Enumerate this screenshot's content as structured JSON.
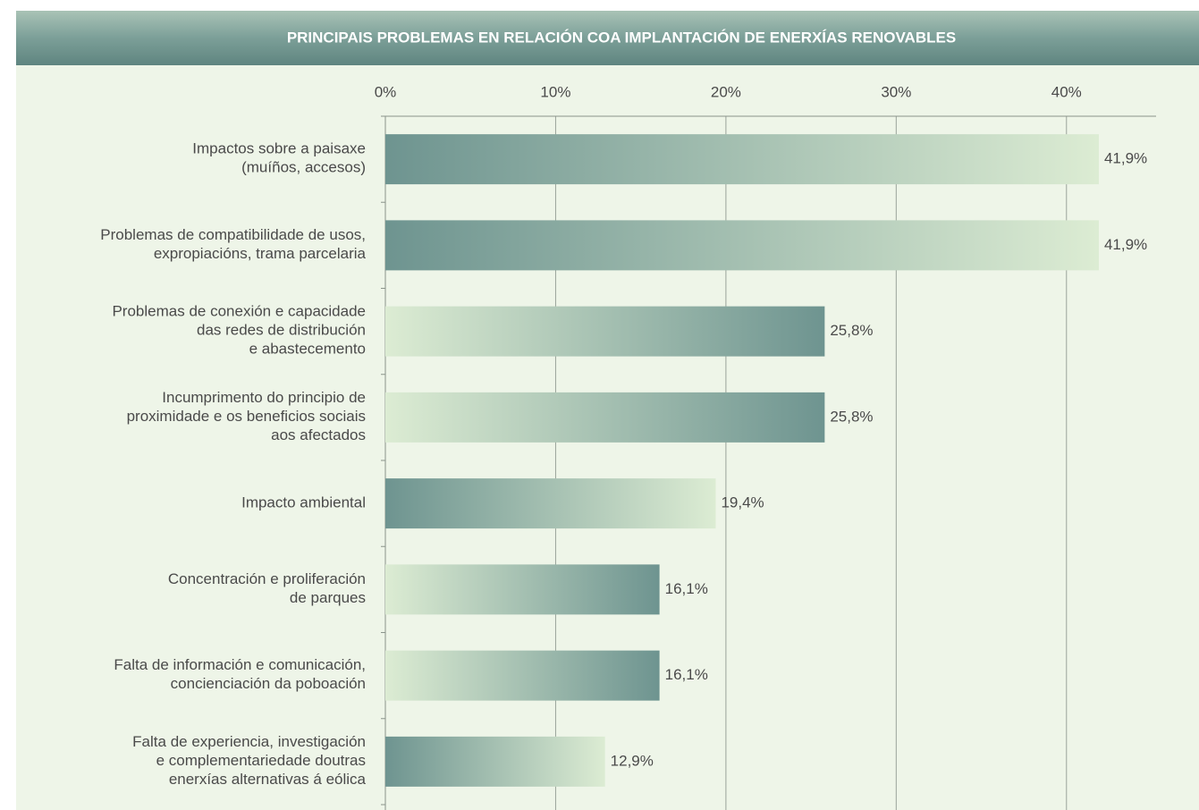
{
  "chart_data": {
    "type": "barh",
    "title": "PRINCIPAIS PROBLEMAS EN RELACIÓN COA IMPLANTACIÓN DE ENERXÍAS RENOVABLES",
    "categories": [
      "Impactos sobre a paisaxe\n(muíños, accesos)",
      "Problemas de compatibilidade de usos,\nexpropiacións, trama parcelaria",
      "Problemas de conexión e capacidade\ndas redes de distribución\ne abastecemento",
      "Incumprimento do principio de\nproximidade e os beneficios sociais\naos afectados",
      "Impacto ambiental",
      "Concentración e proliferación\nde parques",
      "Falta de información e comunicación,\nconcienciación da poboación",
      "Falta de experiencia, investigación\ne complementariedade doutras\nenerxías alternativas á eólica"
    ],
    "values": [
      41.9,
      41.9,
      25.8,
      25.8,
      19.4,
      16.1,
      16.1,
      12.9
    ],
    "value_labels": [
      "41,9%",
      "41,9%",
      "25,8%",
      "25,8%",
      "19,4%",
      "16,1%",
      "16,1%",
      "12,9%"
    ],
    "bar_gradients": [
      [
        "#6e9490",
        "#dcecd3"
      ],
      [
        "#6e9490",
        "#dcecd3"
      ],
      [
        "#dcecd3",
        "#6e9490"
      ],
      [
        "#dcecd3",
        "#6e9490"
      ],
      [
        "#6e9490",
        "#dcecd3"
      ],
      [
        "#dcecd3",
        "#6e9490"
      ],
      [
        "#dcecd3",
        "#6e9490"
      ],
      [
        "#6e9490",
        "#dcecd3"
      ]
    ],
    "xlim": [
      0,
      45
    ],
    "xticks": [
      {
        "value": 0,
        "label": "0%"
      },
      {
        "value": 10,
        "label": "10%"
      },
      {
        "value": 20,
        "label": "20%"
      },
      {
        "value": 30,
        "label": "30%"
      },
      {
        "value": 40,
        "label": "40%"
      }
    ],
    "grid": true
  }
}
